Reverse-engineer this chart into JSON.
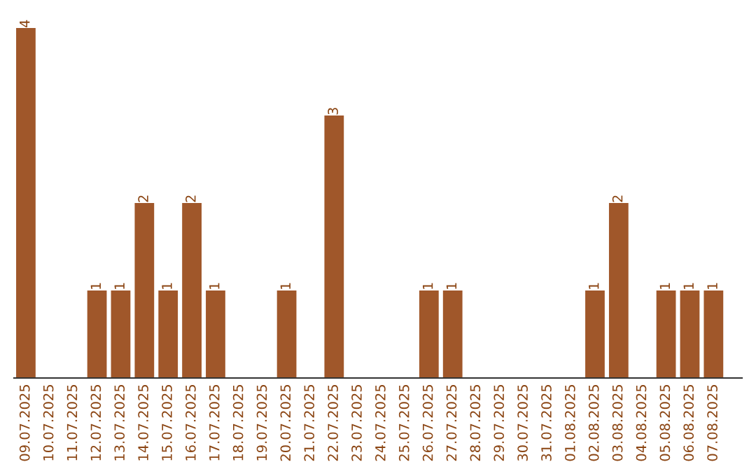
{
  "chart_data": {
    "type": "bar",
    "relative": false,
    "categories": [
      "09.07.2025",
      "10.07.2025",
      "11.07.2025",
      "12.07.2025",
      "13.07.2025",
      "14.07.2025",
      "15.07.2025",
      "16.07.2025",
      "17.07.2025",
      "18.07.2025",
      "19.07.2025",
      "20.07.2025",
      "21.07.2025",
      "22.07.2025",
      "23.07.2025",
      "24.07.2025",
      "25.07.2025",
      "26.07.2025",
      "27.07.2025",
      "28.07.2025",
      "29.07.2025",
      "30.07.2025",
      "31.07.2025",
      "01.08.2025",
      "02.08.2025",
      "03.08.2025",
      "04.08.2025",
      "05.08.2025",
      "06.08.2025",
      "07.08.2025"
    ],
    "values": [
      4,
      0,
      0,
      1,
      1,
      2,
      1,
      2,
      1,
      0,
      0,
      1,
      0,
      3,
      0,
      0,
      0,
      1,
      1,
      0,
      0,
      0,
      0,
      0,
      1,
      2,
      0,
      1,
      1,
      1
    ],
    "value_labels": [
      "4",
      null,
      null,
      "1",
      "1",
      "2",
      "1",
      "2",
      "1",
      null,
      null,
      "1",
      null,
      "3",
      null,
      null,
      null,
      "1",
      "1",
      null,
      null,
      null,
      null,
      null,
      "1",
      "2",
      null,
      "1",
      "1",
      "1"
    ],
    "color": "#a0572a",
    "grid": false,
    "legend": false
  }
}
